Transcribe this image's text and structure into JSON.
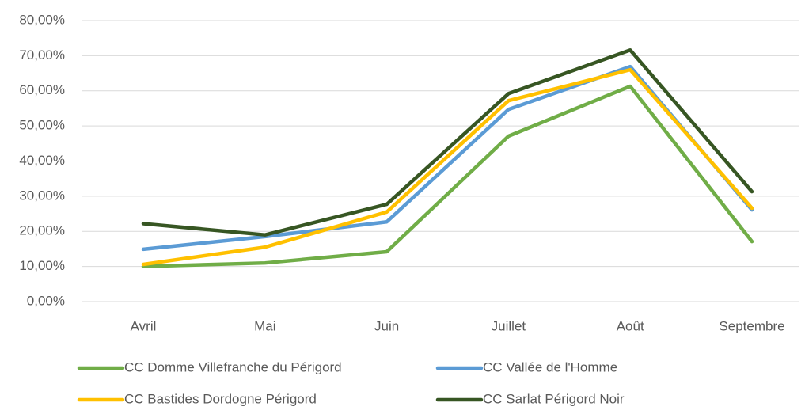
{
  "chart_data": {
    "type": "line",
    "categories": [
      "Avril",
      "Mai",
      "Juin",
      "Juillet",
      "Août",
      "Septembre"
    ],
    "series": [
      {
        "name": "CC Domme Villefranche du Périgord",
        "color": "#70ad47",
        "values": [
          10.0,
          11.0,
          14.2,
          47.1,
          61.3,
          17.1
        ]
      },
      {
        "name": "CC Vallée de l'Homme",
        "color": "#5b9bd5",
        "values": [
          14.9,
          18.5,
          22.7,
          54.7,
          66.9,
          26.1
        ]
      },
      {
        "name": "CC Bastides Dordogne Périgord",
        "color": "#ffc000",
        "values": [
          10.6,
          15.5,
          25.5,
          57.2,
          66.0,
          26.6
        ]
      },
      {
        "name": "CC Sarlat Périgord Noir",
        "color": "#375623",
        "values": [
          22.2,
          19.0,
          27.7,
          59.2,
          71.6,
          31.3
        ]
      }
    ],
    "ylim": [
      0,
      80
    ],
    "yticks": [
      {
        "value": 0,
        "label": "0,00%"
      },
      {
        "value": 10,
        "label": "10,00%"
      },
      {
        "value": 20,
        "label": "20,00%"
      },
      {
        "value": 30,
        "label": "30,00%"
      },
      {
        "value": 40,
        "label": "40,00%"
      },
      {
        "value": 50,
        "label": "50,00%"
      },
      {
        "value": 60,
        "label": "60,00%"
      },
      {
        "value": 70,
        "label": "70,00%"
      },
      {
        "value": 80,
        "label": "80,00%"
      }
    ],
    "grid": true
  }
}
